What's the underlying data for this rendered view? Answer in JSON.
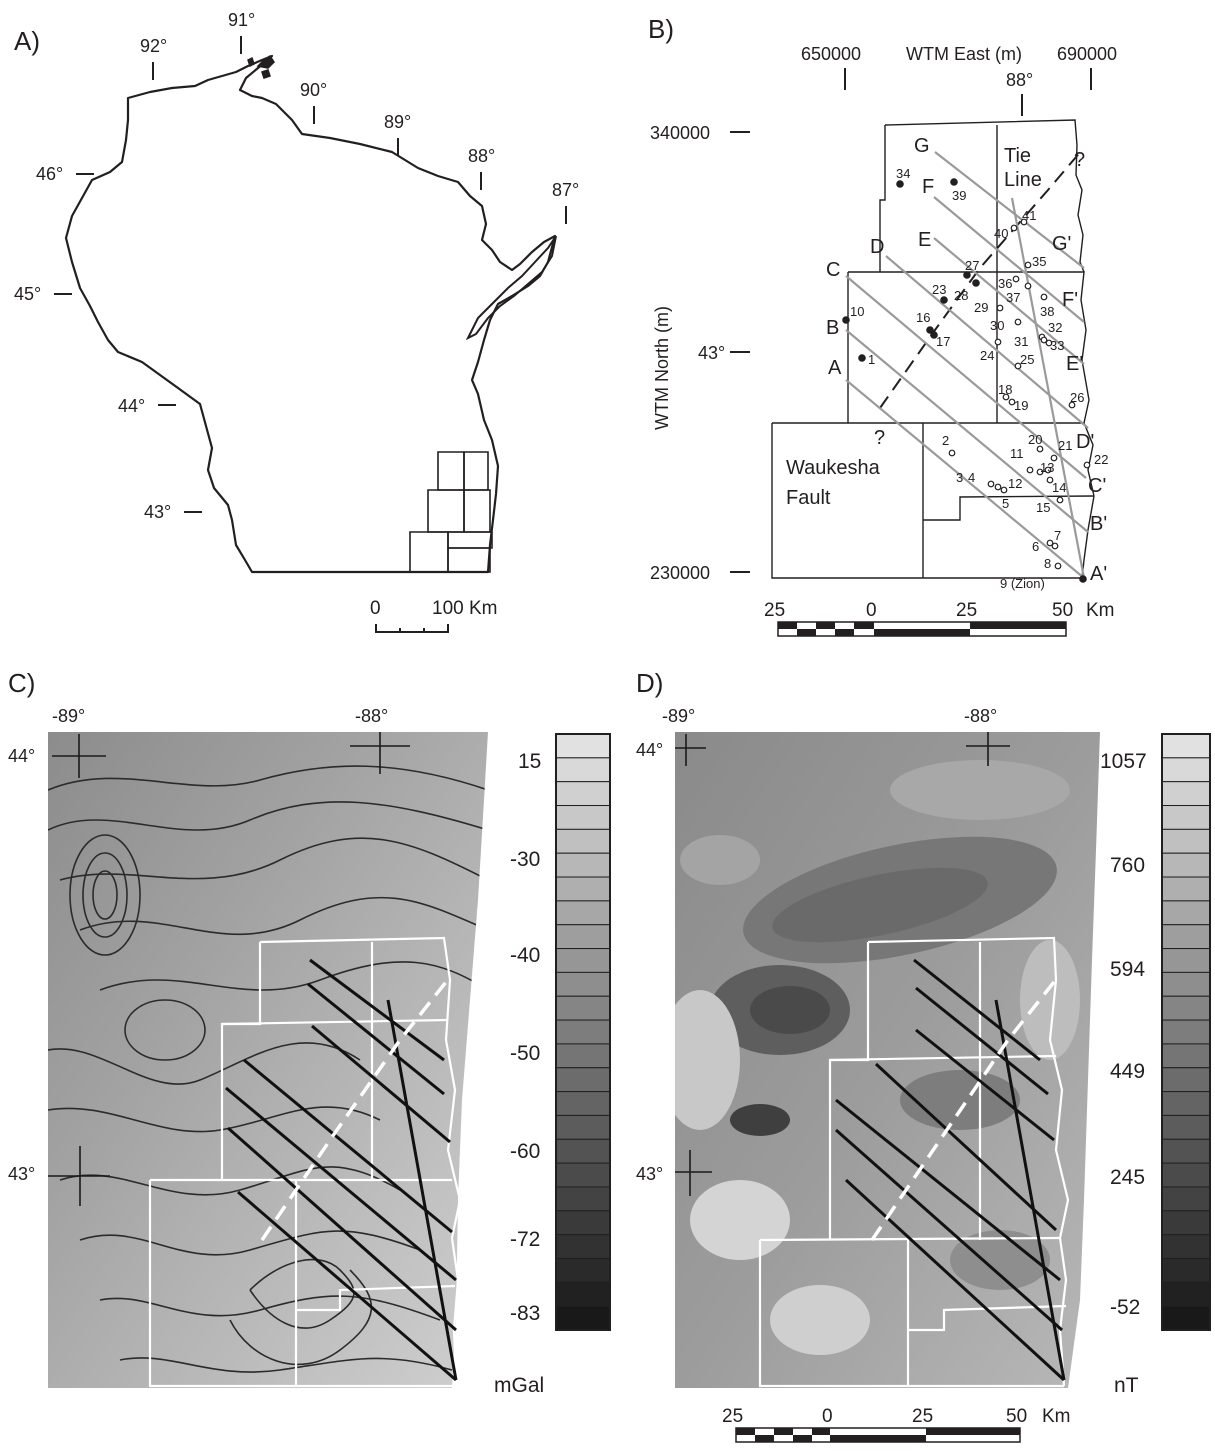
{
  "panels": {
    "a": {
      "label": "A)",
      "longitudes": [
        "92°",
        "91°",
        "90°",
        "89°",
        "88°",
        "87°"
      ],
      "latitudes": [
        "46°",
        "45°",
        "44°",
        "43°"
      ],
      "scale": {
        "start": "0",
        "end": "100 Km"
      }
    },
    "b": {
      "label": "B)",
      "east_ticks": [
        "650000",
        "690000"
      ],
      "east_title": "WTM East (m)",
      "meridian": "88°",
      "north_ticks": [
        "340000",
        "230000"
      ],
      "north_title": "WTM North (m)",
      "parallel": "43°",
      "profiles": [
        {
          "start": "A",
          "end": "A'"
        },
        {
          "start": "B",
          "end": "B'"
        },
        {
          "start": "C",
          "end": "C'"
        },
        {
          "start": "D",
          "end": "D'"
        },
        {
          "start": "E",
          "end": "E'"
        },
        {
          "start": "F",
          "end": "F'"
        },
        {
          "start": "G",
          "end": "G'"
        }
      ],
      "tie_line": [
        "Tie",
        "Line"
      ],
      "fault": [
        "Waukesha",
        "Fault"
      ],
      "query_marks": [
        "?",
        "?"
      ],
      "sites": [
        "1",
        "2",
        "3",
        "4",
        "5",
        "6",
        "7",
        "8",
        "9 (Zion)",
        "10",
        "11",
        "12",
        "13",
        "14",
        "15",
        "16",
        "17",
        "18",
        "19",
        "20",
        "21",
        "22",
        "23",
        "24",
        "25",
        "26",
        "27",
        "28",
        "29",
        "30",
        "31",
        "32",
        "33",
        "34",
        "35",
        "36",
        "37",
        "38",
        "39",
        "40",
        "41"
      ],
      "scale": {
        "ticks": [
          "25",
          "0",
          "25",
          "50"
        ],
        "unit": "Km"
      }
    },
    "c": {
      "label": "C)",
      "longitudes": [
        "-89°",
        "-88°"
      ],
      "latitudes": [
        "44°",
        "43°"
      ],
      "colorbar": {
        "ticks": [
          "15",
          "-30",
          "-40",
          "-50",
          "-60",
          "-72",
          "-83"
        ],
        "unit": "mGal"
      }
    },
    "d": {
      "label": "D)",
      "longitudes": [
        "-89°",
        "-88°"
      ],
      "latitudes": [
        "44°",
        "43°"
      ],
      "colorbar": {
        "ticks": [
          "1057",
          "760",
          "594",
          "449",
          "245",
          "-52"
        ],
        "unit": "nT"
      },
      "scale": {
        "ticks": [
          "25",
          "0",
          "25",
          "50"
        ],
        "unit": "Km"
      }
    }
  }
}
